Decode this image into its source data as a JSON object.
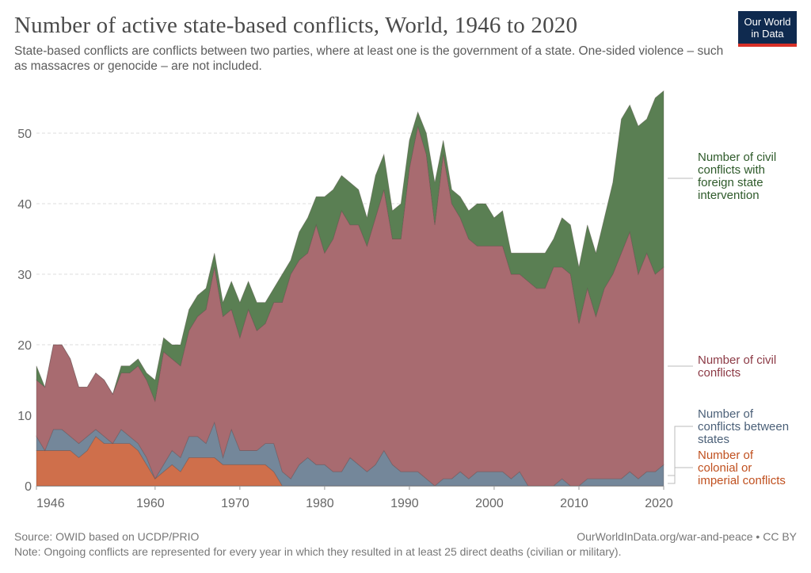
{
  "title": "Number of active state-based conflicts, World, 1946 to 2020",
  "subtitle": "State-based conflicts are conflicts between two parties, where at least one is the government of a state. One-sided violence – such as massacres or genocide – are not included.",
  "logo": {
    "line1": "Our World",
    "line2": "in Data",
    "color": "#0f2a4f",
    "accent": "#d73027"
  },
  "footer": {
    "source": "Source: OWID based on UCDP/PRIO",
    "credit": "OurWorldInData.org/war-and-peace • CC BY",
    "note": "Note: Ongoing conflicts are represented for every year in which they resulted in at least 25 direct deaths (civilian or military)."
  },
  "chart_data": {
    "type": "area",
    "stacked": true,
    "title": "Number of active state-based conflicts, World, 1946 to 2020",
    "xlim": [
      1946,
      2020
    ],
    "ylim": [
      0,
      56
    ],
    "x_ticks": [
      "1946",
      "1960",
      "1970",
      "1980",
      "1990",
      "2000",
      "2010",
      "2020"
    ],
    "y_ticks": [
      "0",
      "10",
      "20",
      "30",
      "40",
      "50"
    ],
    "grid": "horizontal dashed",
    "legend": "right (inline labels)",
    "x_start": 1946,
    "series": [
      {
        "name": "Number of colonial or imperial conflicts",
        "color": "#cf6f4b",
        "label_color": "#c0501f",
        "values": [
          5,
          5,
          5,
          5,
          5,
          4,
          5,
          7,
          6,
          6,
          6,
          6,
          5,
          3,
          1,
          2,
          3,
          2,
          4,
          4,
          4,
          4,
          3,
          3,
          3,
          3,
          3,
          3,
          2,
          0,
          0,
          0,
          0,
          0,
          0,
          0,
          0,
          0,
          0,
          0,
          0,
          0,
          0,
          0,
          0,
          0,
          0,
          0,
          0,
          0,
          0,
          0,
          0,
          0,
          0,
          0,
          0,
          0,
          0,
          0,
          0,
          0,
          0,
          0,
          0,
          0,
          0,
          0,
          0,
          0,
          0,
          0,
          0,
          0,
          0
        ]
      },
      {
        "name": "Number of conflicts between states",
        "color": "#74879a",
        "label_color": "#4b6078",
        "values": [
          2,
          0,
          3,
          3,
          2,
          2,
          2,
          1,
          1,
          0,
          2,
          1,
          1,
          1,
          0,
          1,
          2,
          2,
          3,
          3,
          2,
          5,
          1,
          5,
          2,
          2,
          2,
          3,
          4,
          2,
          1,
          3,
          4,
          3,
          3,
          2,
          2,
          4,
          3,
          2,
          3,
          5,
          3,
          2,
          2,
          2,
          1,
          0,
          1,
          1,
          2,
          1,
          2,
          2,
          2,
          2,
          1,
          2,
          0,
          0,
          0,
          0,
          1,
          0,
          0,
          1,
          1,
          1,
          1,
          1,
          2,
          1,
          2,
          2,
          3
        ]
      },
      {
        "name": "Number of civil conflicts",
        "color": "#a86b70",
        "label_color": "#8c3a45",
        "values": [
          8,
          9,
          12,
          12,
          11,
          8,
          7,
          8,
          8,
          7,
          8,
          9,
          11,
          11,
          11,
          16,
          13,
          13,
          15,
          17,
          19,
          22,
          20,
          17,
          16,
          20,
          17,
          17,
          20,
          24,
          29,
          29,
          29,
          34,
          30,
          33,
          37,
          33,
          34,
          32,
          35,
          37,
          32,
          33,
          43,
          49,
          46,
          37,
          46,
          39,
          36,
          34,
          32,
          32,
          32,
          32,
          29,
          28,
          29,
          28,
          28,
          31,
          30,
          30,
          23,
          27,
          23,
          27,
          29,
          32,
          34,
          29,
          31,
          28,
          28
        ]
      },
      {
        "name": "Number of civil conflicts with foreign state intervention",
        "color": "#5a7f53",
        "label_color": "#2e5a2a",
        "values": [
          2,
          0,
          0,
          0,
          0,
          0,
          0,
          0,
          0,
          0,
          1,
          1,
          1,
          1,
          3,
          2,
          2,
          3,
          3,
          3,
          3,
          2,
          2,
          4,
          5,
          4,
          4,
          3,
          2,
          4,
          2,
          4,
          5,
          4,
          8,
          7,
          5,
          6,
          5,
          4,
          6,
          5,
          4,
          5,
          4,
          2,
          3,
          6,
          2,
          2,
          3,
          4,
          6,
          6,
          4,
          5,
          3,
          3,
          4,
          5,
          5,
          4,
          7,
          7,
          8,
          9,
          9,
          10,
          13,
          19,
          18,
          21,
          19,
          25,
          25
        ]
      }
    ],
    "labels": {
      "intervention": [
        "Number of civil",
        "conflicts with",
        "foreign state",
        "intervention"
      ],
      "civil": [
        "Number of civil",
        "conflicts"
      ],
      "interstate": [
        "Number of",
        "conflicts between",
        "states"
      ],
      "colonial": [
        "Number of",
        "colonial or",
        "imperial conflicts"
      ]
    }
  }
}
